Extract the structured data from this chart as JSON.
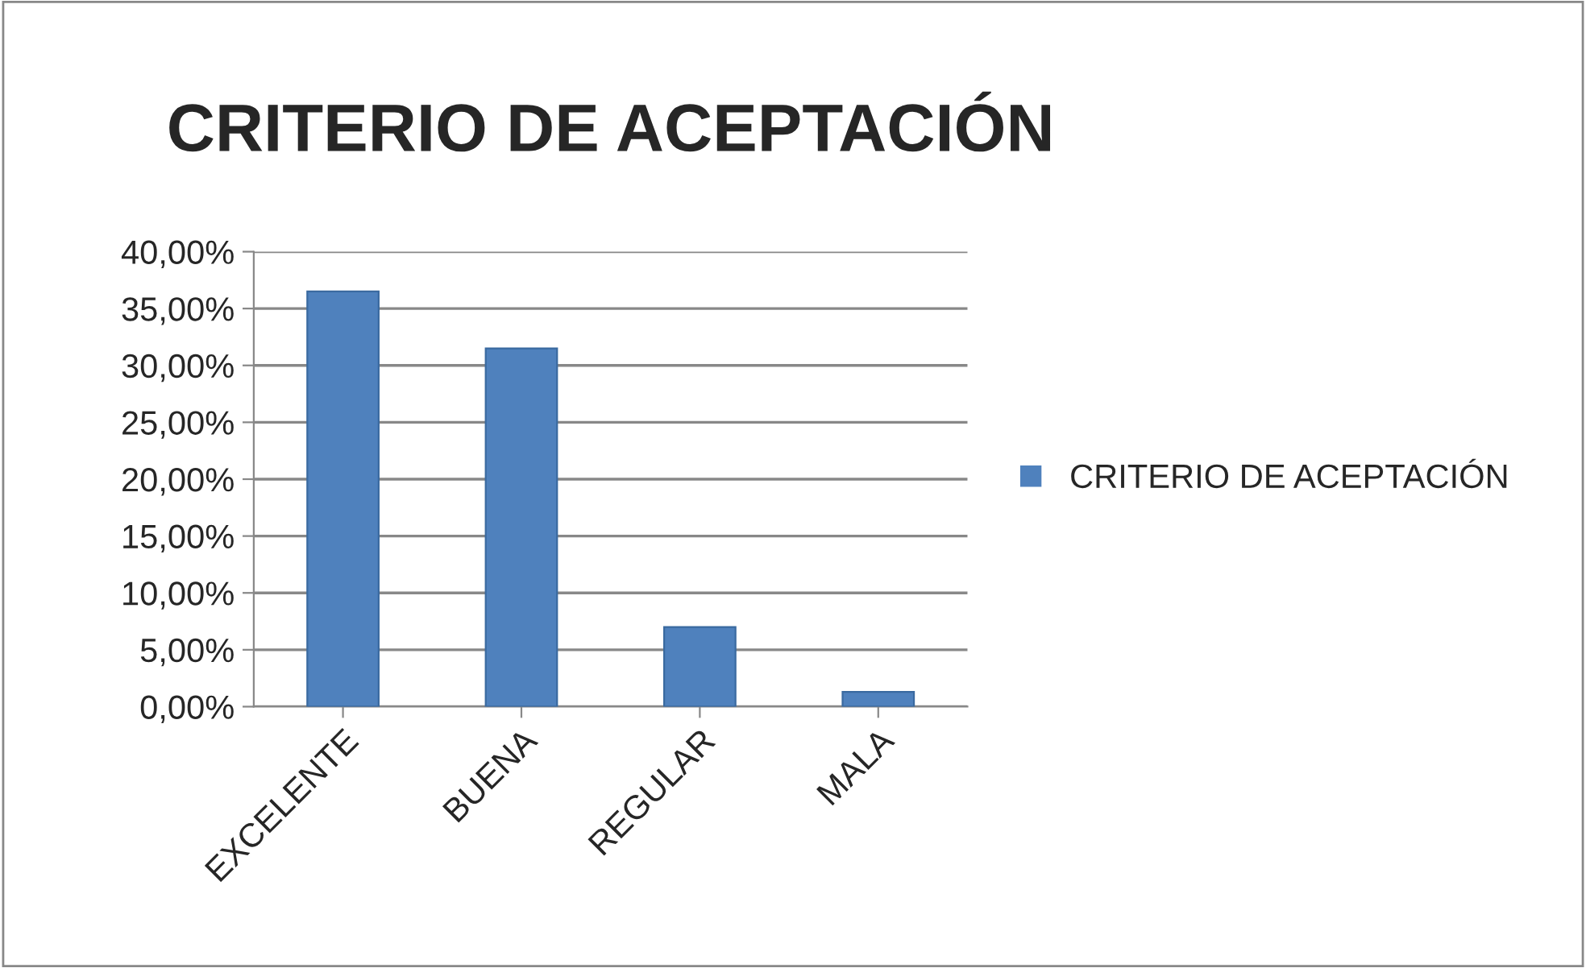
{
  "chart_data": {
    "type": "bar",
    "title": "CRITERIO DE ACEPTACIÓN",
    "categories": [
      "EXCELENTE",
      "BUENA",
      "REGULAR",
      "MALA"
    ],
    "series": [
      {
        "name": "CRITERIO DE ACEPTACIÓN",
        "color": "#4f81bd",
        "values": [
          36.5,
          31.5,
          7,
          1.3
        ]
      }
    ],
    "ylim": [
      0,
      40
    ],
    "yticks": [
      {
        "value": 0,
        "label": "0,00%"
      },
      {
        "value": 5,
        "label": "5,00%"
      },
      {
        "value": 10,
        "label": "10,00%"
      },
      {
        "value": 15,
        "label": "15,00%"
      },
      {
        "value": 20,
        "label": "20,00%"
      },
      {
        "value": 25,
        "label": "25,00%"
      },
      {
        "value": 30,
        "label": "30,00%"
      },
      {
        "value": 35,
        "label": "35,00%"
      },
      {
        "value": 40,
        "label": "40,00%"
      }
    ],
    "grid": "y",
    "legend": "right"
  }
}
